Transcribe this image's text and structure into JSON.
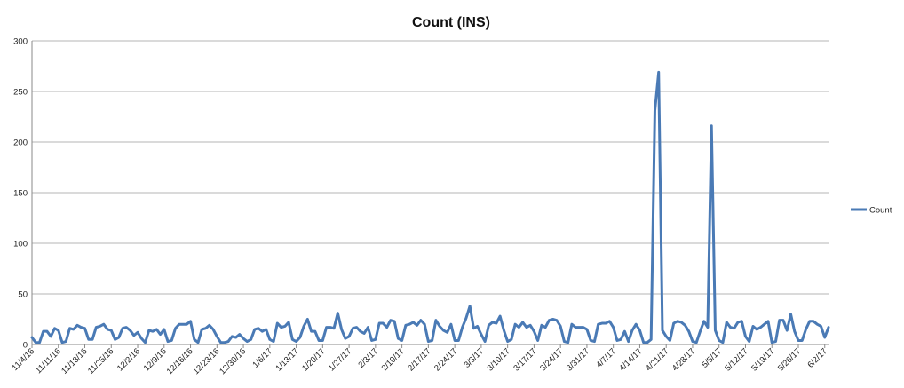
{
  "chart_data": {
    "type": "line",
    "title": "Count (INS)",
    "xlabel": "",
    "ylabel": "",
    "ylim": [
      0,
      300
    ],
    "yticks": [
      "0",
      "50",
      "100",
      "150",
      "200",
      "250",
      "300"
    ],
    "grid": "horizontal",
    "legend_position": "right",
    "series_color": "#4a7ab5",
    "x_tick_labels": [
      "11/4/16",
      "11/11/16",
      "11/18/16",
      "11/25/16",
      "12/2/16",
      "12/9/16",
      "12/16/16",
      "12/23/16",
      "12/30/16",
      "1/6/17",
      "1/13/17",
      "1/20/17",
      "1/27/17",
      "2/3/17",
      "2/10/17",
      "2/17/17",
      "2/24/17",
      "3/3/17",
      "3/10/17",
      "3/17/17",
      "3/24/17",
      "3/31/17",
      "4/7/17",
      "4/14/17",
      "4/21/17",
      "4/28/17",
      "5/5/17",
      "5/12/17",
      "5/19/17",
      "5/26/17",
      "6/2/17"
    ],
    "series": [
      {
        "name": "Count",
        "values": [
          7,
          2,
          2,
          13,
          13,
          8,
          16,
          14,
          2,
          3,
          16,
          15,
          19,
          17,
          16,
          5,
          5,
          17,
          18,
          20,
          15,
          14,
          5,
          7,
          16,
          17,
          14,
          9,
          12,
          6,
          2,
          14,
          13,
          15,
          10,
          15,
          3,
          4,
          16,
          20,
          20,
          20,
          23,
          5,
          2,
          15,
          16,
          19,
          15,
          8,
          2,
          2,
          3,
          8,
          7,
          10,
          6,
          3,
          5,
          15,
          16,
          13,
          15,
          5,
          3,
          21,
          17,
          18,
          22,
          5,
          3,
          7,
          18,
          25,
          13,
          13,
          4,
          4,
          17,
          17,
          16,
          31,
          15,
          6,
          8,
          16,
          17,
          13,
          11,
          17,
          4,
          5,
          21,
          21,
          17,
          24,
          23,
          6,
          4,
          19,
          20,
          22,
          19,
          24,
          20,
          3,
          4,
          24,
          18,
          14,
          12,
          20,
          4,
          4,
          17,
          26,
          38,
          16,
          18,
          10,
          3,
          19,
          22,
          21,
          28,
          14,
          3,
          5,
          20,
          17,
          22,
          17,
          19,
          13,
          4,
          19,
          17,
          24,
          25,
          24,
          18,
          3,
          2,
          20,
          17,
          17,
          17,
          15,
          4,
          3,
          20,
          21,
          21,
          23,
          17,
          4,
          5,
          13,
          3,
          14,
          20,
          14,
          2,
          2,
          5,
          231,
          269,
          14,
          8,
          4,
          21,
          23,
          22,
          19,
          13,
          3,
          2,
          13,
          23,
          17,
          216,
          14,
          4,
          2,
          22,
          17,
          16,
          22,
          23,
          8,
          3,
          18,
          15,
          17,
          20,
          23,
          2,
          3,
          24,
          24,
          14,
          30,
          13,
          4,
          4,
          15,
          23,
          23,
          20,
          18,
          7,
          17
        ]
      }
    ]
  }
}
